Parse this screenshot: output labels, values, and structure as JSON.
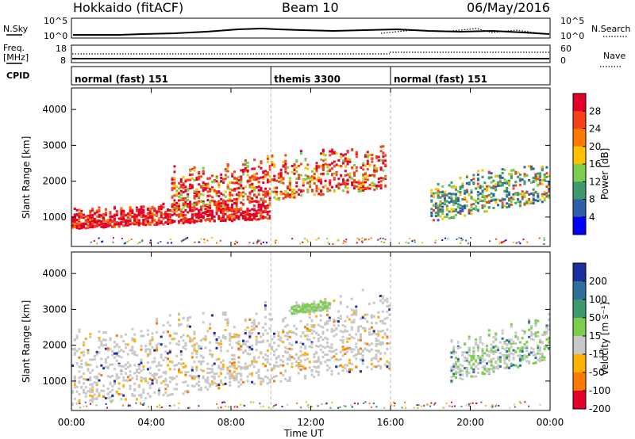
{
  "header": {
    "station": "Hokkaido (fitACF)",
    "beam": "Beam 10",
    "date": "06/May/2016"
  },
  "top_panels": {
    "nsky_label": "N.Sky",
    "nsearch_label": "N.Search",
    "freq_label_1": "Freq.",
    "freq_label_2": "[MHz]",
    "nave_label": "Nave",
    "cpid_label": "CPID",
    "left_ticks_n": [
      "10^5",
      "10^0"
    ],
    "right_ticks_n": [
      "10^5",
      "10^0"
    ],
    "left_ticks_freq": [
      "18",
      "8"
    ],
    "right_ticks_nave": [
      "60",
      "0"
    ]
  },
  "cpid_segments": [
    {
      "label": "normal (fast) 151",
      "start_hour": 0,
      "end_hour": 10
    },
    {
      "label": "themis 3300",
      "start_hour": 10,
      "end_hour": 16
    },
    {
      "label": "normal (fast) 151",
      "start_hour": 16,
      "end_hour": 24
    }
  ],
  "axes": {
    "ylabel": "Slant Range [km]",
    "xlabel": "Time UT",
    "x_ticks": [
      "00:00",
      "04:00",
      "08:00",
      "12:00",
      "16:00",
      "20:00",
      "00:00"
    ],
    "y_ticks": [
      "1000",
      "2000",
      "3000",
      "4000"
    ]
  },
  "colorbars": {
    "power": {
      "label": "Power [dB]",
      "ticks": [
        "28",
        "24",
        "20",
        "16",
        "12",
        "8",
        "4"
      ],
      "colors": [
        "#e4002b",
        "#f5421a",
        "#ff7a00",
        "#ffc000",
        "#7ccf4c",
        "#3c9a6c",
        "#2e5fa8",
        "#0000ff"
      ]
    },
    "velocity": {
      "label": "Velocity [m s⁻¹]",
      "ticks": [
        "200",
        "100",
        "50",
        "15",
        "-15",
        "-50",
        "-100",
        "-200"
      ],
      "colors": [
        "#1c2fa0",
        "#2e6f9c",
        "#3c9a6c",
        "#7ccf4c",
        "#c8c8c8",
        "#ffb000",
        "#ff7a00",
        "#e4002b"
      ]
    }
  },
  "chart_data": [
    {
      "type": "heatmap",
      "title": "",
      "xlabel": "Time UT",
      "ylabel": "Slant Range [km]",
      "xlim_hours": [
        0,
        24
      ],
      "ylim": [
        180,
        4600
      ],
      "colorbar": "Power [dB]",
      "bands": [
        {
          "start_hour": 0,
          "end_hour": 10,
          "range_from_km": 700,
          "range_to_km": 1500,
          "level_db": 28
        },
        {
          "start_hour": 5,
          "end_hour": 15.8,
          "range_from_km": 1200,
          "range_to_km": 3000,
          "level_db": 24
        },
        {
          "start_hour": 18,
          "end_hour": 24,
          "range_from_km": 900,
          "range_to_km": 2600,
          "level_db": 14
        }
      ]
    },
    {
      "type": "heatmap",
      "title": "",
      "xlabel": "Time UT",
      "ylabel": "Slant Range [km]",
      "xlim_hours": [
        0,
        24
      ],
      "ylim": [
        180,
        4600
      ],
      "colorbar": "Velocity [m s⁻¹]",
      "bands": [
        {
          "start_hour": 0,
          "end_hour": 16,
          "range_from_km": 300,
          "range_to_km": 3400,
          "level_ms": 0
        },
        {
          "start_hour": 11,
          "end_hour": 13,
          "range_from_km": 2900,
          "range_to_km": 3300,
          "level_ms": 30
        },
        {
          "start_hour": 19,
          "end_hour": 24,
          "range_from_km": 1000,
          "range_to_km": 2800,
          "level_ms": 20
        }
      ]
    }
  ]
}
